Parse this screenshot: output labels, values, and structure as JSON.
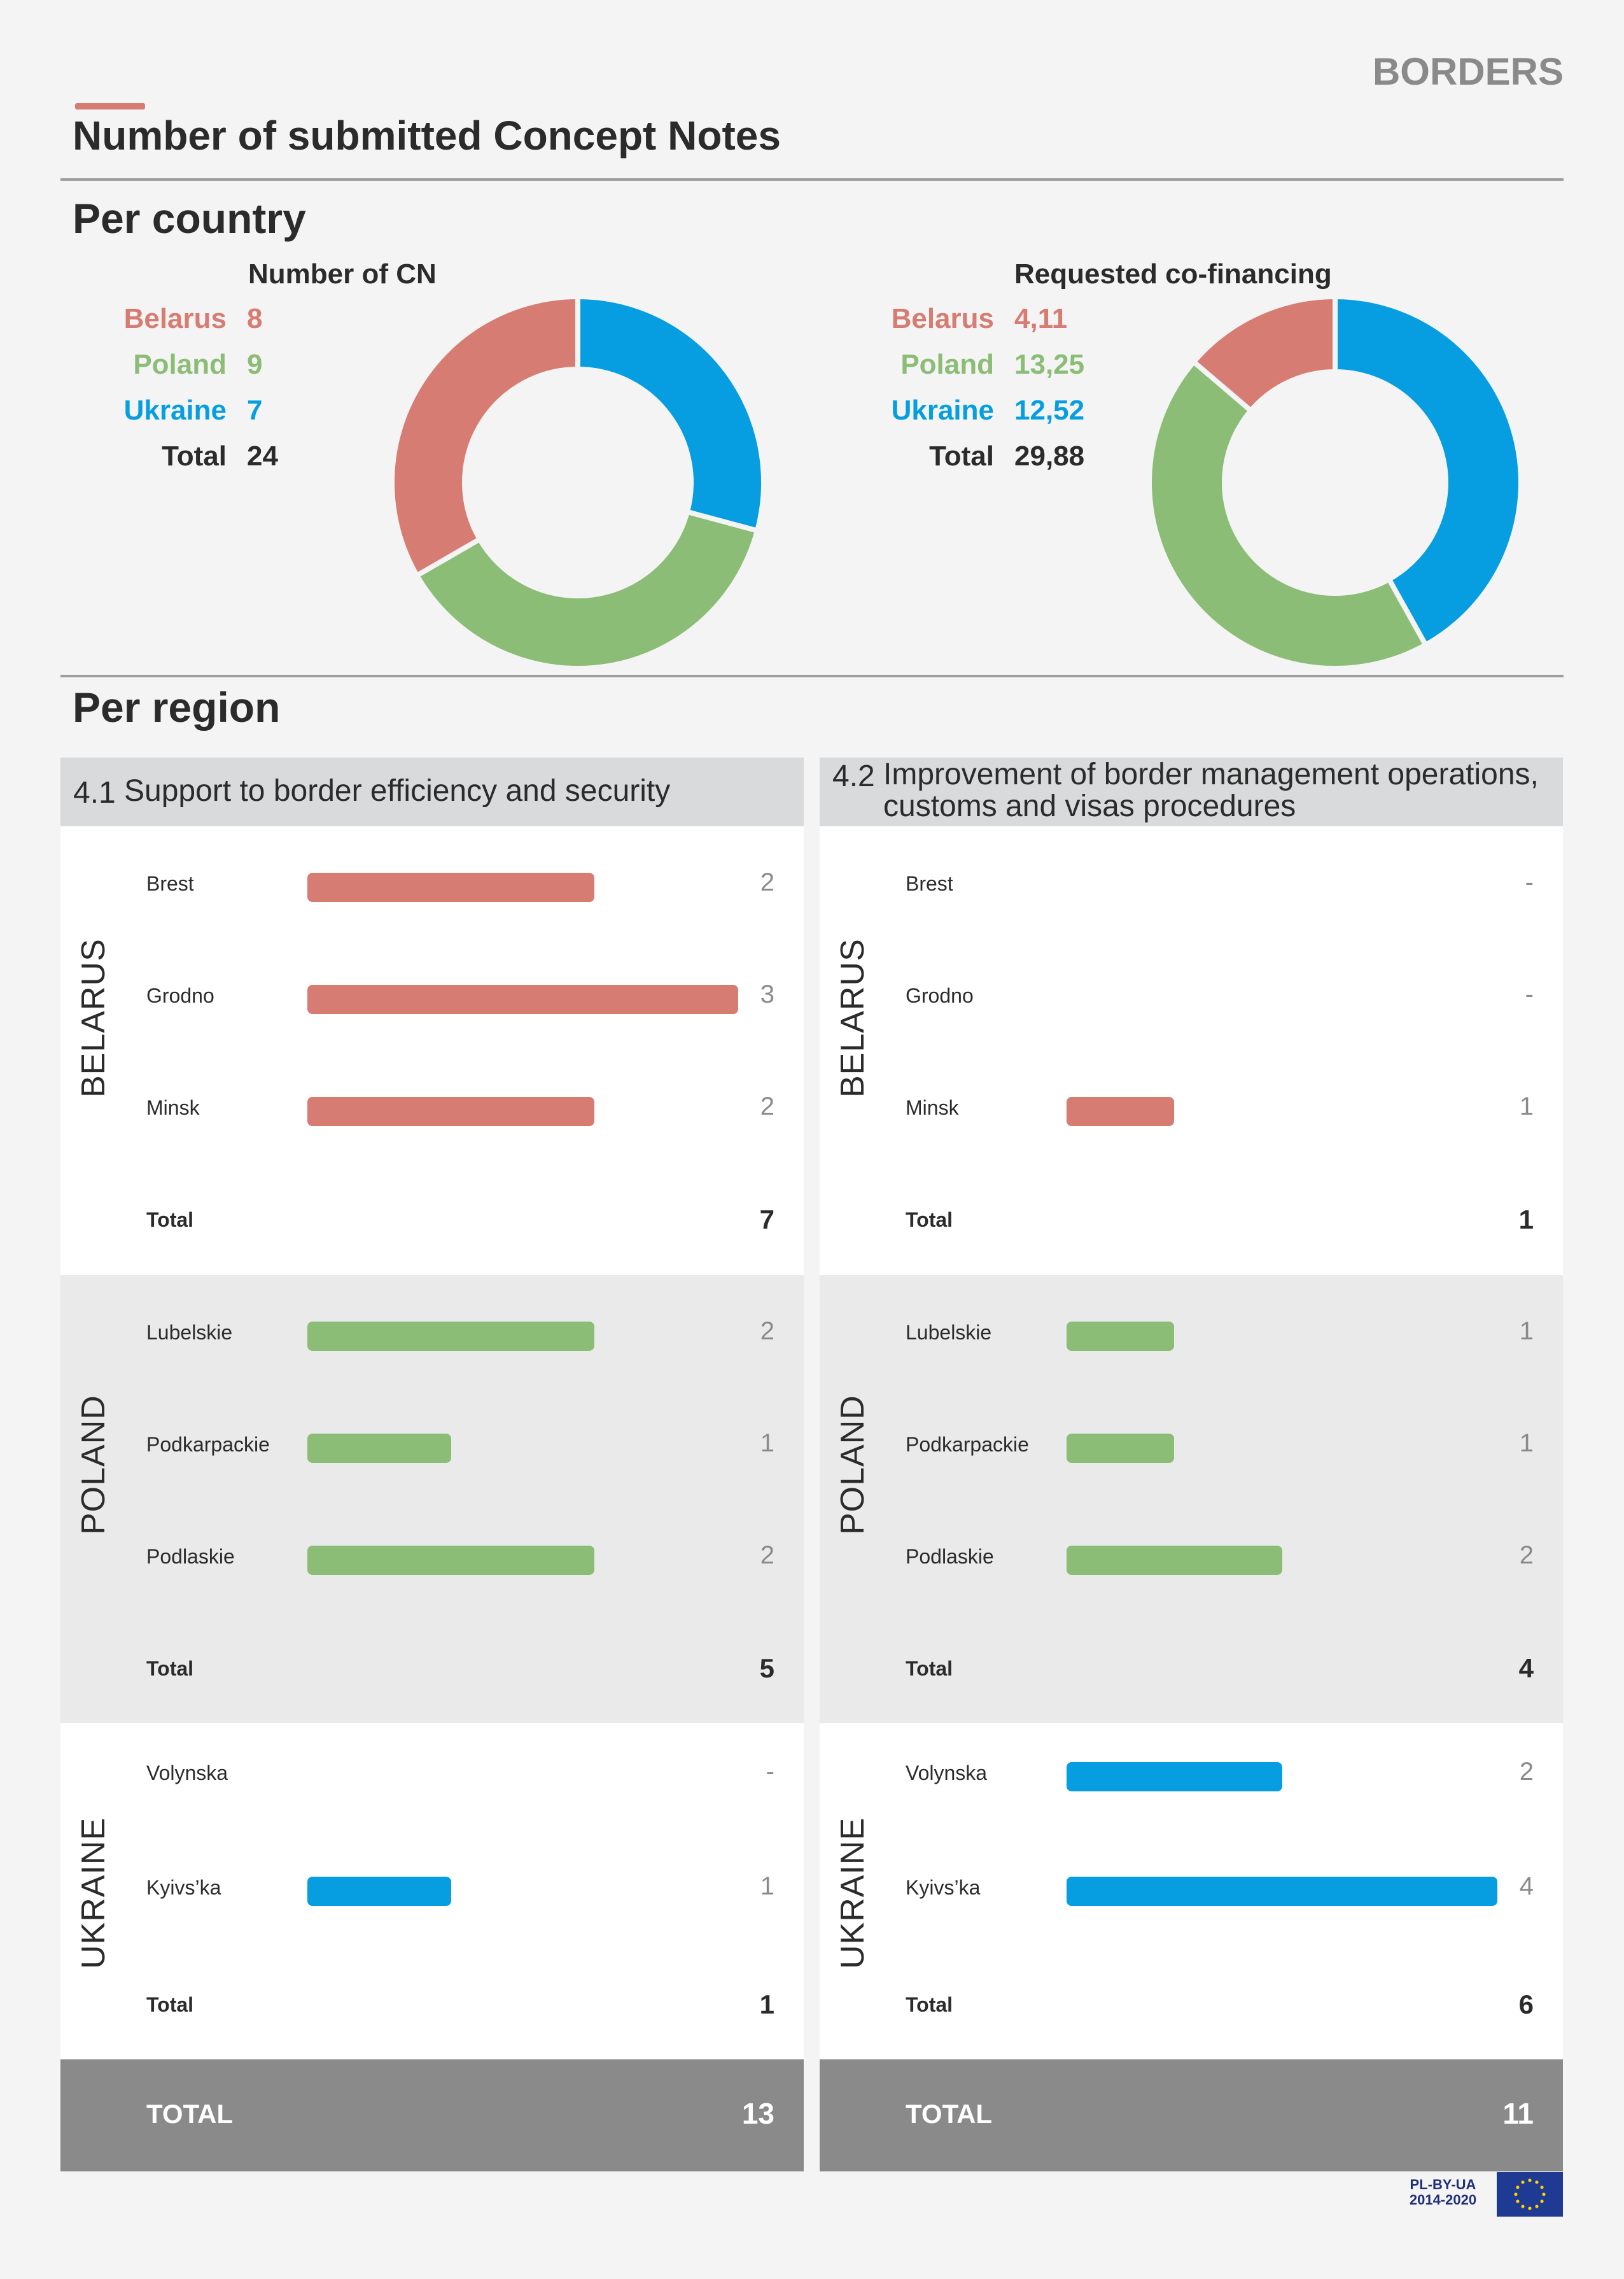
{
  "header": {
    "section_tag": "BORDERS",
    "title": "Number of submitted Concept Notes"
  },
  "per_country": {
    "heading": "Per country",
    "cn": {
      "caption": "Number of CN",
      "rows": [
        {
          "name": "Belarus",
          "value": "8",
          "color": "#d77c73"
        },
        {
          "name": "Poland",
          "value": "9",
          "color": "#8bbd76"
        },
        {
          "name": "Ukraine",
          "value": "7",
          "color": "#069ee0"
        },
        {
          "name": "Total",
          "value": "24",
          "color": "#2b2b2b"
        }
      ]
    },
    "cofin": {
      "caption": "Requested co-financing",
      "rows": [
        {
          "name": "Belarus",
          "value": "4,11",
          "color": "#d77c73"
        },
        {
          "name": "Poland",
          "value": "13,25",
          "color": "#8bbd76"
        },
        {
          "name": "Ukraine",
          "value": "12,52",
          "color": "#069ee0"
        },
        {
          "name": "Total",
          "value": "29,88",
          "color": "#2b2b2b"
        }
      ]
    }
  },
  "per_region": {
    "heading": "Per region",
    "panels": [
      {
        "num": "4.1",
        "title_lines": [
          "Support to border efficiency and security"
        ],
        "countries": [
          {
            "name": "BELARUS",
            "color": "#d77c73",
            "regions": [
              {
                "name": "Brest",
                "display": "2"
              },
              {
                "name": "Grodno",
                "display": "3"
              },
              {
                "name": "Minsk",
                "display": "2"
              }
            ],
            "total_label": "Total",
            "total": "7"
          },
          {
            "name": "POLAND",
            "color": "#8bbd76",
            "regions": [
              {
                "name": "Lubelskie",
                "display": "2"
              },
              {
                "name": "Podkarpackie",
                "display": "1"
              },
              {
                "name": "Podlaskie",
                "display": "2"
              }
            ],
            "total_label": "Total",
            "total": "5"
          },
          {
            "name": "UKRAINE",
            "color": "#069ee0",
            "regions": [
              {
                "name": "Volynska",
                "display": "-"
              },
              {
                "name": "Kyivs’ka",
                "display": "1"
              }
            ],
            "total_label": "Total",
            "total": "1"
          }
        ],
        "grand_label": "TOTAL",
        "grand_total": "13"
      },
      {
        "num": "4.2",
        "title_lines": [
          "Improvement of border management operations,",
          "customs and visas procedures"
        ],
        "countries": [
          {
            "name": "BELARUS",
            "color": "#d77c73",
            "regions": [
              {
                "name": "Brest",
                "display": "-"
              },
              {
                "name": "Grodno",
                "display": "-"
              },
              {
                "name": "Minsk",
                "display": "1"
              }
            ],
            "total_label": "Total",
            "total": "1"
          },
          {
            "name": "POLAND",
            "color": "#8bbd76",
            "regions": [
              {
                "name": "Lubelskie",
                "display": "1"
              },
              {
                "name": "Podkarpackie",
                "display": "1"
              },
              {
                "name": "Podlaskie",
                "display": "2"
              }
            ],
            "total_label": "Total",
            "total": "4"
          },
          {
            "name": "UKRAINE",
            "color": "#069ee0",
            "regions": [
              {
                "name": "Volynska",
                "display": "2"
              },
              {
                "name": "Kyivs’ka",
                "display": "4"
              }
            ],
            "total_label": "Total",
            "total": "6"
          }
        ],
        "grand_label": "TOTAL",
        "grand_total": "11"
      }
    ]
  },
  "footer": {
    "logo_line1": "PL-BY-UA",
    "logo_line2": "2014-2020"
  },
  "chart_data": [
    {
      "type": "pie",
      "title": "Number of CN",
      "categories": [
        "Belarus",
        "Poland",
        "Ukraine"
      ],
      "values": [
        8,
        9,
        7
      ],
      "colors": [
        "#d77c73",
        "#8bbd76",
        "#069ee0"
      ]
    },
    {
      "type": "pie",
      "title": "Requested co-financing",
      "categories": [
        "Belarus",
        "Poland",
        "Ukraine"
      ],
      "values": [
        4.11,
        13.25,
        12.52
      ],
      "colors": [
        "#d77c73",
        "#8bbd76",
        "#069ee0"
      ]
    },
    {
      "type": "bar",
      "title": "4.1 Support to border efficiency and security",
      "categories": [
        "Brest",
        "Grodno",
        "Minsk",
        "Lubelskie",
        "Podkarpackie",
        "Podlaskie",
        "Volynska",
        "Kyivs’ka"
      ],
      "values": [
        2,
        3,
        2,
        2,
        1,
        2,
        0,
        1
      ]
    },
    {
      "type": "bar",
      "title": "4.2 Improvement of border management operations, customs and visas procedures",
      "categories": [
        "Brest",
        "Grodno",
        "Minsk",
        "Lubelskie",
        "Podkarpackie",
        "Podlaskie",
        "Volynska",
        "Kyivs’ka"
      ],
      "values": [
        0,
        0,
        1,
        1,
        1,
        2,
        2,
        4
      ]
    }
  ]
}
